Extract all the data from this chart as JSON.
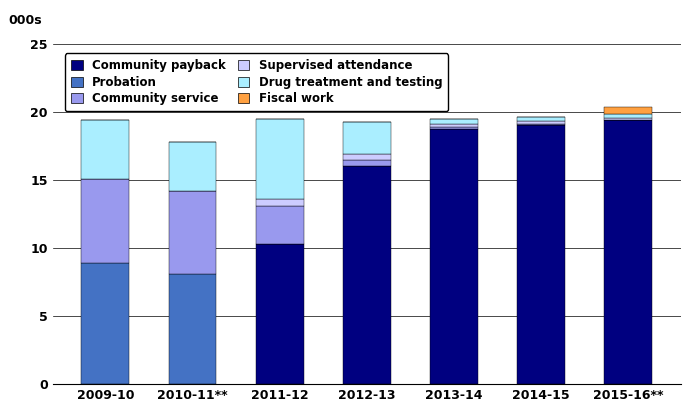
{
  "categories": [
    "2009-10",
    "2010-11**",
    "2011-12",
    "2012-13",
    "2013-14",
    "2014-15",
    "2015-16**"
  ],
  "series": {
    "Community payback": [
      0.0,
      0.0,
      10.3,
      16.0,
      18.75,
      19.05,
      19.4
    ],
    "Probation": [
      8.9,
      8.1,
      0.0,
      0.0,
      0.0,
      0.0,
      0.0
    ],
    "Community service": [
      6.2,
      6.1,
      2.8,
      0.5,
      0.15,
      0.1,
      0.05
    ],
    "Supervised attendance": [
      0.0,
      0.0,
      0.5,
      0.4,
      0.25,
      0.2,
      0.15
    ],
    "Drug treatment and testing": [
      4.3,
      3.6,
      5.9,
      2.4,
      0.35,
      0.3,
      0.25
    ],
    "Fiscal work": [
      0.0,
      0.0,
      0.0,
      0.0,
      0.0,
      0.0,
      0.5
    ]
  },
  "colors": {
    "Community payback": "#000080",
    "Probation": "#4472C4",
    "Community service": "#9999EE",
    "Supervised attendance": "#CCCCFF",
    "Drug treatment and testing": "#AAEEFF",
    "Fiscal work": "#FFA040"
  },
  "ylim": [
    0,
    25
  ],
  "yticks": [
    0,
    5,
    10,
    15,
    20,
    25
  ],
  "ylabel_top": "000s",
  "figsize": [
    6.96,
    4.17
  ],
  "dpi": 100,
  "legend_order": [
    "Community payback",
    "Probation",
    "Community service",
    "Supervised attendance",
    "Drug treatment and testing",
    "Fiscal work"
  ]
}
